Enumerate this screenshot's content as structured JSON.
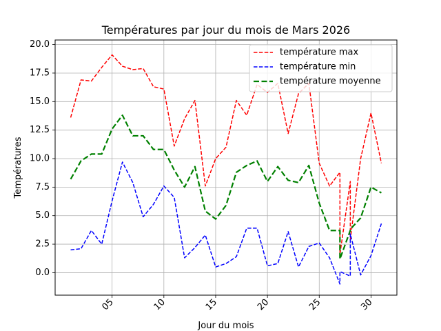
{
  "chart_data": {
    "type": "line",
    "title": "Températures par jour du mois de Mars 2026",
    "xlabel": "Jour du mois",
    "ylabel": "Températures",
    "xlim": [
      -0.5,
      32.5
    ],
    "ylim": [
      -1.97,
      20.4
    ],
    "xticks": [
      5,
      10,
      15,
      20,
      25,
      30
    ],
    "xtick_labels": [
      "05",
      "10",
      "15",
      "20",
      "25",
      "30"
    ],
    "yticks": [
      0.0,
      2.5,
      5.0,
      7.5,
      10.0,
      12.5,
      15.0,
      17.5,
      20.0
    ],
    "ytick_labels": [
      "0.0",
      "2.5",
      "5.0",
      "7.5",
      "10.0",
      "12.5",
      "15.0",
      "17.5",
      "20.0"
    ],
    "grid": true,
    "legend_position": "top-right",
    "series": [
      {
        "name": "température max",
        "color": "#ff0000",
        "style": "dashed",
        "x": [
          1,
          2,
          3,
          4,
          5,
          6,
          7,
          8,
          9,
          10,
          11,
          12,
          13,
          14,
          15,
          16,
          17,
          18,
          19,
          20,
          21,
          22,
          23,
          24,
          25,
          26,
          27,
          27,
          28,
          28,
          29,
          30,
          31
        ],
        "values": [
          13.6,
          16.9,
          16.8,
          18.0,
          19.1,
          18.1,
          17.8,
          17.9,
          16.3,
          16.1,
          11.1,
          13.5,
          15.1,
          7.6,
          10.0,
          11.0,
          15.1,
          13.8,
          16.5,
          15.8,
          16.6,
          12.2,
          15.7,
          16.6,
          9.6,
          7.6,
          8.8,
          1.6,
          8.0,
          2.9,
          10.0,
          14.0,
          9.6
        ]
      },
      {
        "name": "température min",
        "color": "#0000ff",
        "style": "dashed",
        "x": [
          1,
          2,
          3,
          4,
          5,
          6,
          7,
          8,
          9,
          10,
          11,
          12,
          13,
          14,
          15,
          16,
          17,
          18,
          19,
          20,
          21,
          22,
          23,
          24,
          25,
          26,
          27,
          27,
          28,
          28,
          29,
          30,
          31
        ],
        "values": [
          2.0,
          2.1,
          3.7,
          2.5,
          6.3,
          9.7,
          7.9,
          4.9,
          6.0,
          7.6,
          6.6,
          1.3,
          2.2,
          3.3,
          0.5,
          0.8,
          1.4,
          3.9,
          3.9,
          0.6,
          0.8,
          3.6,
          0.5,
          2.3,
          2.6,
          1.3,
          -1.0,
          0.1,
          -0.3,
          3.4,
          -0.2,
          1.5,
          4.3
        ]
      },
      {
        "name": "température moyenne",
        "color": "#008000",
        "style": "dashed-thick",
        "x": [
          1,
          2,
          3,
          4,
          5,
          6,
          7,
          8,
          9,
          10,
          11,
          12,
          13,
          14,
          15,
          16,
          17,
          18,
          19,
          20,
          21,
          22,
          23,
          24,
          25,
          26,
          27,
          27,
          28,
          28,
          29,
          30,
          31
        ],
        "values": [
          8.2,
          9.8,
          10.4,
          10.4,
          12.6,
          13.8,
          12.0,
          12.0,
          10.8,
          10.8,
          9.0,
          7.5,
          9.3,
          5.4,
          4.7,
          5.9,
          8.8,
          9.4,
          9.8,
          8.0,
          9.3,
          8.1,
          7.9,
          9.4,
          6.1,
          3.7,
          3.7,
          1.2,
          3.7,
          3.8,
          4.8,
          7.5,
          7.0
        ]
      }
    ]
  }
}
